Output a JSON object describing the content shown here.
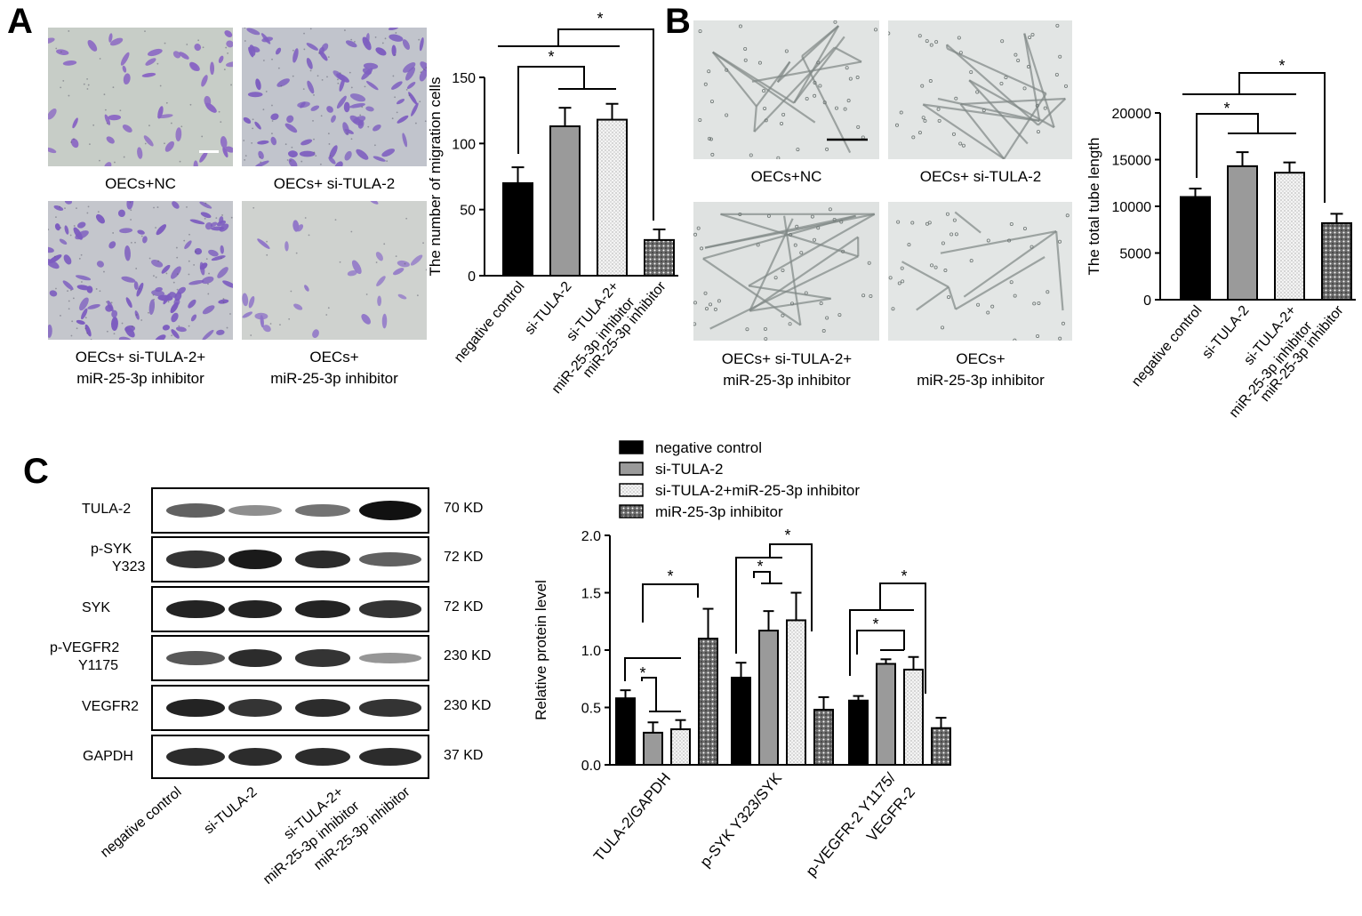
{
  "panels": {
    "A": "A",
    "B": "B",
    "C": "C"
  },
  "panel_a": {
    "captions": [
      "OECs+NC",
      "OECs+ si-TULA-2",
      "OECs+ si-TULA-2+",
      "miR-25-3p inhibitor",
      "OECs+",
      "miR-25-3p inhibitor"
    ]
  },
  "panel_b": {
    "captions": [
      "OECs+NC",
      "OECs+ si-TULA-2",
      "OECs+ si-TULA-2+",
      "miR-25-3p inhibitor",
      "OECs+",
      "miR-25-3p inhibitor"
    ]
  },
  "western_blot": {
    "rows": [
      {
        "label": [
          "TULA-2"
        ],
        "kd": "70 KD",
        "intensity": [
          0.55,
          0.3,
          0.45,
          1.0
        ]
      },
      {
        "label": [
          "p-SYK",
          "Y323"
        ],
        "kd": "72 KD",
        "intensity": [
          0.8,
          0.95,
          0.85,
          0.55
        ]
      },
      {
        "label": [
          "SYK"
        ],
        "kd": "72 KD",
        "intensity": [
          0.9,
          0.9,
          0.9,
          0.8
        ]
      },
      {
        "label": [
          "p-VEGFR2",
          "Y1175"
        ],
        "kd": "230 KD",
        "intensity": [
          0.6,
          0.85,
          0.8,
          0.25
        ]
      },
      {
        "label": [
          "VEGFR2"
        ],
        "kd": "230 KD",
        "intensity": [
          0.9,
          0.8,
          0.85,
          0.8
        ]
      },
      {
        "label": [
          "GAPDH"
        ],
        "kd": "37 KD",
        "intensity": [
          0.85,
          0.85,
          0.85,
          0.85
        ]
      }
    ],
    "lanes": [
      "negative control",
      "si-TULA-2",
      "si-TULA-2+",
      "miR-25-3p inhibitor",
      "miR-25-3p inhibitor"
    ]
  },
  "colors": {
    "nc": "#000000",
    "si": "#9a9a9a",
    "combo": "#f2f2f2",
    "inh": "#5a5a5a"
  },
  "chart_data": [
    {
      "type": "bar",
      "categories": [
        "negative control",
        "si-TULA-2",
        "si-TULA-2+ miR-25-3p inhibitor",
        "miR-25-3p inhibitor"
      ],
      "values": [
        70,
        113,
        118,
        27
      ],
      "errors": [
        12,
        14,
        12,
        8
      ],
      "ylabel": "The number of migration cells",
      "ylim": [
        0,
        150
      ],
      "yticks": [
        "0",
        "50",
        "100",
        "150"
      ],
      "significance": "*"
    },
    {
      "type": "bar",
      "categories": [
        "negative control",
        "si-TULA-2",
        "si-TULA-2+ miR-25-3p inhibitor",
        "miR-25-3p inhibitor"
      ],
      "values": [
        11000,
        14300,
        13600,
        8200
      ],
      "errors": [
        900,
        1500,
        1100,
        1000
      ],
      "ylabel": "The total tube length",
      "ylim": [
        0,
        20000
      ],
      "yticks": [
        "0",
        "5000",
        "10000",
        "15000",
        "20000"
      ],
      "significance": "*"
    },
    {
      "type": "bar",
      "categories": [
        "TULA-2/GAPDH",
        "p-SYK Y323/SYK",
        "p-VEGFR-2 Y1175/ VEGFR-2"
      ],
      "series": [
        {
          "name": "negative control",
          "values": [
            0.58,
            0.76,
            0.56
          ],
          "errors": [
            0.07,
            0.13,
            0.04
          ]
        },
        {
          "name": "si-TULA-2",
          "values": [
            0.28,
            1.17,
            0.88
          ],
          "errors": [
            0.09,
            0.17,
            0.04
          ]
        },
        {
          "name": "si-TULA-2+miR-25-3p inhibitor",
          "values": [
            0.31,
            1.26,
            0.83
          ],
          "errors": [
            0.08,
            0.24,
            0.11
          ]
        },
        {
          "name": "miR-25-3p inhibitor",
          "values": [
            1.1,
            0.48,
            0.32
          ],
          "errors": [
            0.26,
            0.11,
            0.09
          ]
        }
      ],
      "ylabel": "Relative protein level",
      "ylim": [
        0,
        2.0
      ],
      "yticks": [
        "0.0",
        "0.5",
        "1.0",
        "1.5",
        "2.0"
      ],
      "legend": "top",
      "significance": "*"
    }
  ]
}
